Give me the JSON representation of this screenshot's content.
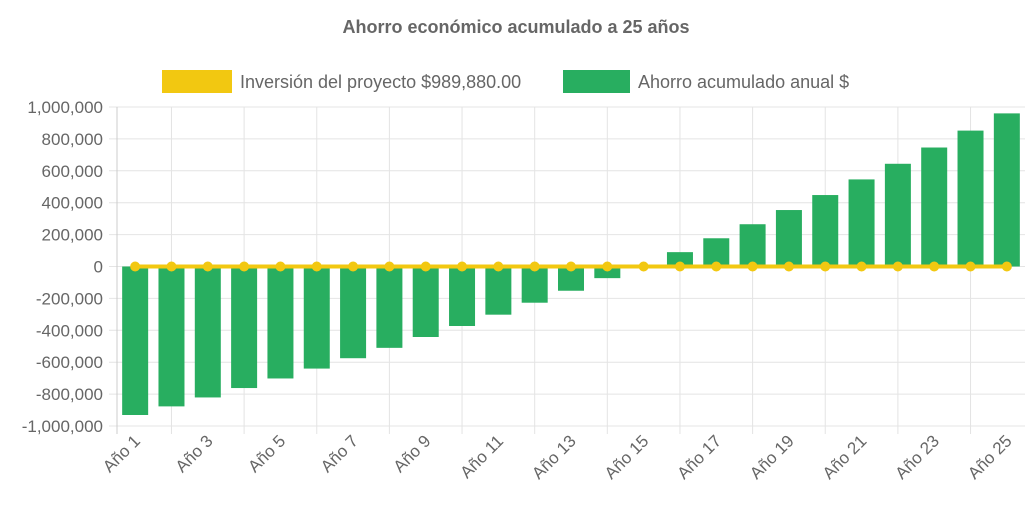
{
  "chart_data": {
    "type": "bar",
    "title": "Ahorro económico acumulado a 25 años",
    "categories": [
      "Año 1",
      "Año 2",
      "Año 3",
      "Año 4",
      "Año 5",
      "Año 6",
      "Año 7",
      "Año 8",
      "Año 9",
      "Año 10",
      "Año 11",
      "Año 12",
      "Año 13",
      "Año 14",
      "Año 15",
      "Año 16",
      "Año 17",
      "Año 18",
      "Año 19",
      "Año 20",
      "Año 21",
      "Año 22",
      "Año 23",
      "Año 24",
      "Año 25"
    ],
    "series": [
      {
        "name": "Inversión del proyecto $989,880.00",
        "type": "line",
        "color": "#f2c811",
        "values": [
          0,
          0,
          0,
          0,
          0,
          0,
          0,
          0,
          0,
          0,
          0,
          0,
          0,
          0,
          0,
          0,
          0,
          0,
          0,
          0,
          0,
          0,
          0,
          0,
          0
        ]
      },
      {
        "name": "Ahorro acumulado anual $",
        "type": "bar",
        "color": "#28ae60",
        "values": [
          -931000,
          -877000,
          -821000,
          -762000,
          -702000,
          -640000,
          -575000,
          -510000,
          -442000,
          -373000,
          -302000,
          -227000,
          -152000,
          -73000,
          8000,
          90000,
          177000,
          265000,
          354000,
          448000,
          546000,
          644000,
          746000,
          852000,
          960000
        ]
      }
    ],
    "ylim": [
      -1000000,
      1000000
    ],
    "yticks": [
      "1,000,000",
      "800,000",
      "600,000",
      "400,000",
      "200,000",
      "0",
      "-200,000",
      "-400,000",
      "-600,000",
      "-800,000",
      "-1,000,000"
    ],
    "ytick_values": [
      1000000,
      800000,
      600000,
      400000,
      200000,
      0,
      -200000,
      -400000,
      -600000,
      -800000,
      -1000000
    ],
    "xlabel": "",
    "ylabel": "",
    "grid": true,
    "legend": "top"
  }
}
